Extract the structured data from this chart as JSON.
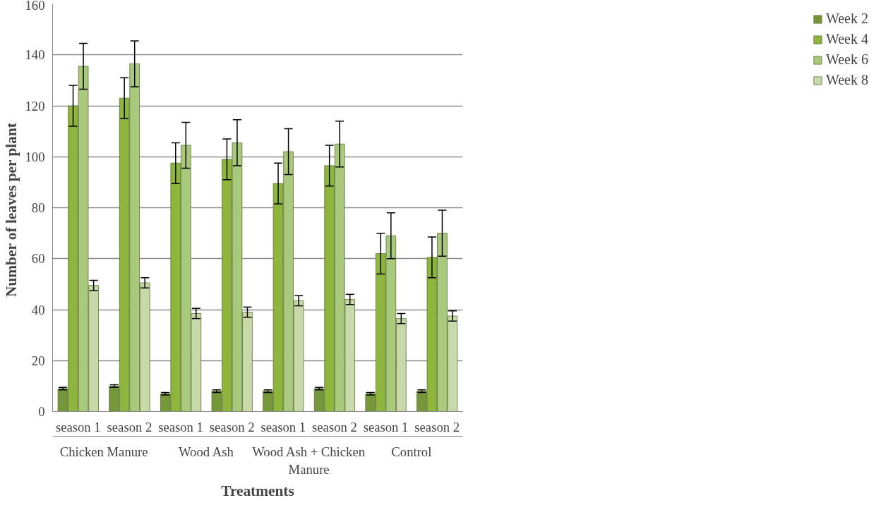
{
  "chart_data": {
    "type": "bar",
    "xlabel": "Treatments",
    "ylabel": "Number  of leaves per plant",
    "categories": [
      "season 1",
      "season 2",
      "season 1",
      "season 2",
      "season 1",
      "season 2",
      "season 1",
      "season 2"
    ],
    "annotations": [
      "Chicken Manure",
      "Wood Ash",
      "Wood Ash + Chicken\nManure",
      "Control"
    ],
    "series": [
      {
        "name": "Week 2",
        "color": "#76973a",
        "values": [
          9,
          10,
          7,
          8,
          8,
          9,
          7,
          8
        ],
        "errors": [
          0.5,
          0.5,
          0.5,
          0.5,
          0.5,
          0.5,
          0.5,
          0.5
        ]
      },
      {
        "name": "Week 4",
        "color": "#8fb63c",
        "values": [
          120,
          123,
          97.5,
          99,
          89.5,
          96.5,
          62,
          60.5
        ],
        "errors": [
          8,
          8,
          8,
          8,
          8,
          8,
          8,
          8
        ]
      },
      {
        "name": "Week 6",
        "color": "#a9c97c",
        "values": [
          135.5,
          136.5,
          104.5,
          105.5,
          102,
          105,
          69,
          70
        ],
        "errors": [
          9,
          9,
          9,
          9,
          9,
          9,
          9,
          9
        ]
      },
      {
        "name": "Week 8",
        "color": "#c8d9aa",
        "values": [
          49.5,
          50.5,
          38.5,
          39,
          43.5,
          44,
          36.5,
          37.5
        ],
        "errors": [
          2,
          2,
          2,
          2,
          2,
          2,
          2,
          2
        ]
      }
    ],
    "ylim": [
      0,
      160
    ],
    "yticks": [
      0,
      20,
      40,
      60,
      80,
      100,
      120,
      140,
      160
    ],
    "grid": "y",
    "legend": "right"
  }
}
